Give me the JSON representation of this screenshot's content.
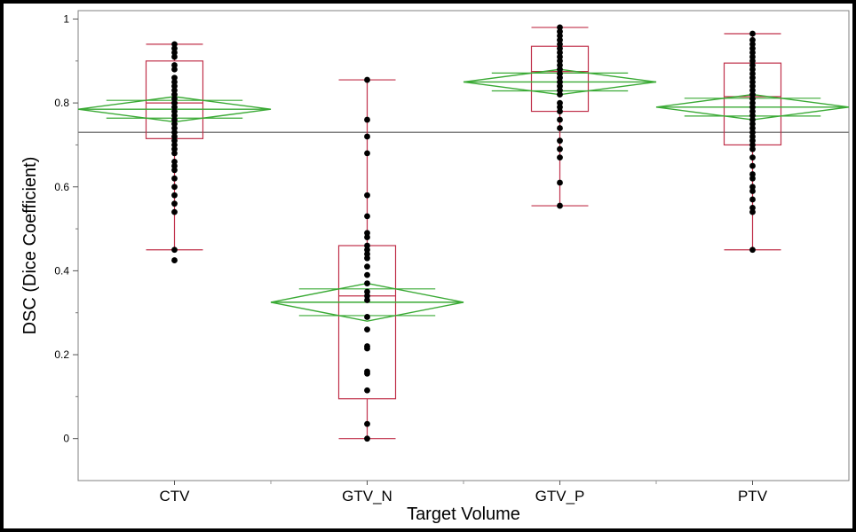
{
  "chart_data": {
    "type": "box-and-diamond",
    "xlabel": "Target Volume",
    "ylabel": "DSC (Dice Coefficient)",
    "ylim": [
      -0.1,
      1.02
    ],
    "yticks": [
      0,
      0.2,
      0.4,
      0.6,
      0.8,
      1
    ],
    "ytick_labels": [
      "0",
      "0.2",
      "0.4",
      "0.6",
      "0.8",
      "1"
    ],
    "grand_mean": 0.73,
    "categories": [
      "CTV",
      "GTV_N",
      "GTV_P",
      "PTV"
    ],
    "groups": [
      {
        "name": "CTV",
        "box": {
          "min": 0.45,
          "q1": 0.715,
          "median": 0.8,
          "q3": 0.9,
          "max": 0.94
        },
        "mean": 0.785,
        "ci": [
          0.755,
          0.815
        ],
        "points": [
          0.94,
          0.93,
          0.92,
          0.91,
          0.89,
          0.88,
          0.86,
          0.85,
          0.84,
          0.83,
          0.82,
          0.81,
          0.8,
          0.8,
          0.79,
          0.78,
          0.77,
          0.76,
          0.75,
          0.74,
          0.73,
          0.72,
          0.71,
          0.7,
          0.69,
          0.68,
          0.66,
          0.65,
          0.64,
          0.62,
          0.6,
          0.58,
          0.56,
          0.54,
          0.45,
          0.425
        ]
      },
      {
        "name": "GTV_N",
        "box": {
          "min": 0.0,
          "q1": 0.095,
          "median": 0.34,
          "q3": 0.46,
          "max": 0.855
        },
        "mean": 0.325,
        "ci": [
          0.28,
          0.37
        ],
        "points": [
          0.855,
          0.76,
          0.72,
          0.68,
          0.58,
          0.53,
          0.49,
          0.48,
          0.46,
          0.45,
          0.44,
          0.43,
          0.41,
          0.39,
          0.37,
          0.35,
          0.34,
          0.33,
          0.29,
          0.26,
          0.22,
          0.215,
          0.16,
          0.155,
          0.115,
          0.035,
          0.0
        ]
      },
      {
        "name": "GTV_P",
        "box": {
          "min": 0.555,
          "q1": 0.78,
          "median": 0.875,
          "q3": 0.935,
          "max": 0.98
        },
        "mean": 0.85,
        "ci": [
          0.82,
          0.88
        ],
        "points": [
          0.98,
          0.97,
          0.96,
          0.95,
          0.94,
          0.93,
          0.92,
          0.91,
          0.9,
          0.89,
          0.88,
          0.87,
          0.86,
          0.85,
          0.84,
          0.83,
          0.82,
          0.8,
          0.79,
          0.78,
          0.76,
          0.74,
          0.71,
          0.69,
          0.67,
          0.61,
          0.555
        ]
      },
      {
        "name": "PTV",
        "box": {
          "min": 0.45,
          "q1": 0.7,
          "median": 0.815,
          "q3": 0.895,
          "max": 0.965
        },
        "mean": 0.79,
        "ci": [
          0.76,
          0.82
        ],
        "points": [
          0.965,
          0.95,
          0.94,
          0.93,
          0.92,
          0.91,
          0.9,
          0.89,
          0.88,
          0.87,
          0.86,
          0.85,
          0.84,
          0.83,
          0.82,
          0.81,
          0.8,
          0.79,
          0.78,
          0.77,
          0.76,
          0.75,
          0.74,
          0.73,
          0.72,
          0.71,
          0.7,
          0.69,
          0.67,
          0.65,
          0.63,
          0.62,
          0.6,
          0.59,
          0.57,
          0.55,
          0.54,
          0.45
        ]
      }
    ],
    "colors": {
      "box": "#c0304a",
      "diamond": "#3aaa35",
      "points": "#000000",
      "grand_mean_line": "#808080",
      "frame": "#808080"
    }
  }
}
